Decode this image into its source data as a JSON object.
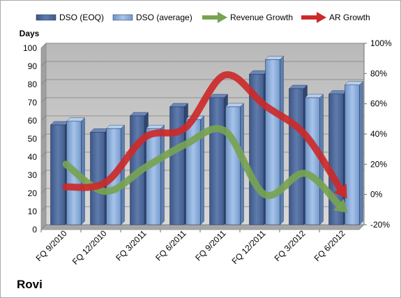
{
  "chart_data": {
    "type": "bar",
    "title": "",
    "ylabel": "Days",
    "ylim": [
      0,
      100
    ],
    "y2lim": [
      -20,
      100
    ],
    "y2_ticks": [
      "-20%",
      "0%",
      "20%",
      "40%",
      "60%",
      "80%",
      "100%"
    ],
    "categories": [
      "FQ 9/2010",
      "FQ 12/2010",
      "FQ 3/2011",
      "FQ 6/2011",
      "FQ 9/2011",
      "FQ 12/2011",
      "FQ 3/2012",
      "FQ 6/2012"
    ],
    "series": [
      {
        "name": "DSO (EOQ)",
        "type": "bar",
        "axis": "left",
        "color": "#4f6b99",
        "values": [
          55,
          51,
          60,
          65,
          70,
          83,
          75,
          72
        ]
      },
      {
        "name": "DSO (average)",
        "type": "bar",
        "axis": "left",
        "color": "#8aaee0",
        "values": [
          57,
          53,
          53,
          58,
          65,
          91,
          70,
          77
        ]
      },
      {
        "name": "Revenue Growth",
        "type": "line",
        "axis": "right",
        "color": "#77a352",
        "unit": "%",
        "values": [
          20,
          2,
          18,
          33,
          42,
          0,
          14,
          -10
        ]
      },
      {
        "name": "AR Growth",
        "type": "line",
        "axis": "right",
        "color": "#cc2a2a",
        "unit": "%",
        "values": [
          5,
          8,
          38,
          44,
          79,
          59,
          40,
          0
        ]
      }
    ],
    "grid": true,
    "legend_position": "top",
    "brand": "Rovi"
  }
}
